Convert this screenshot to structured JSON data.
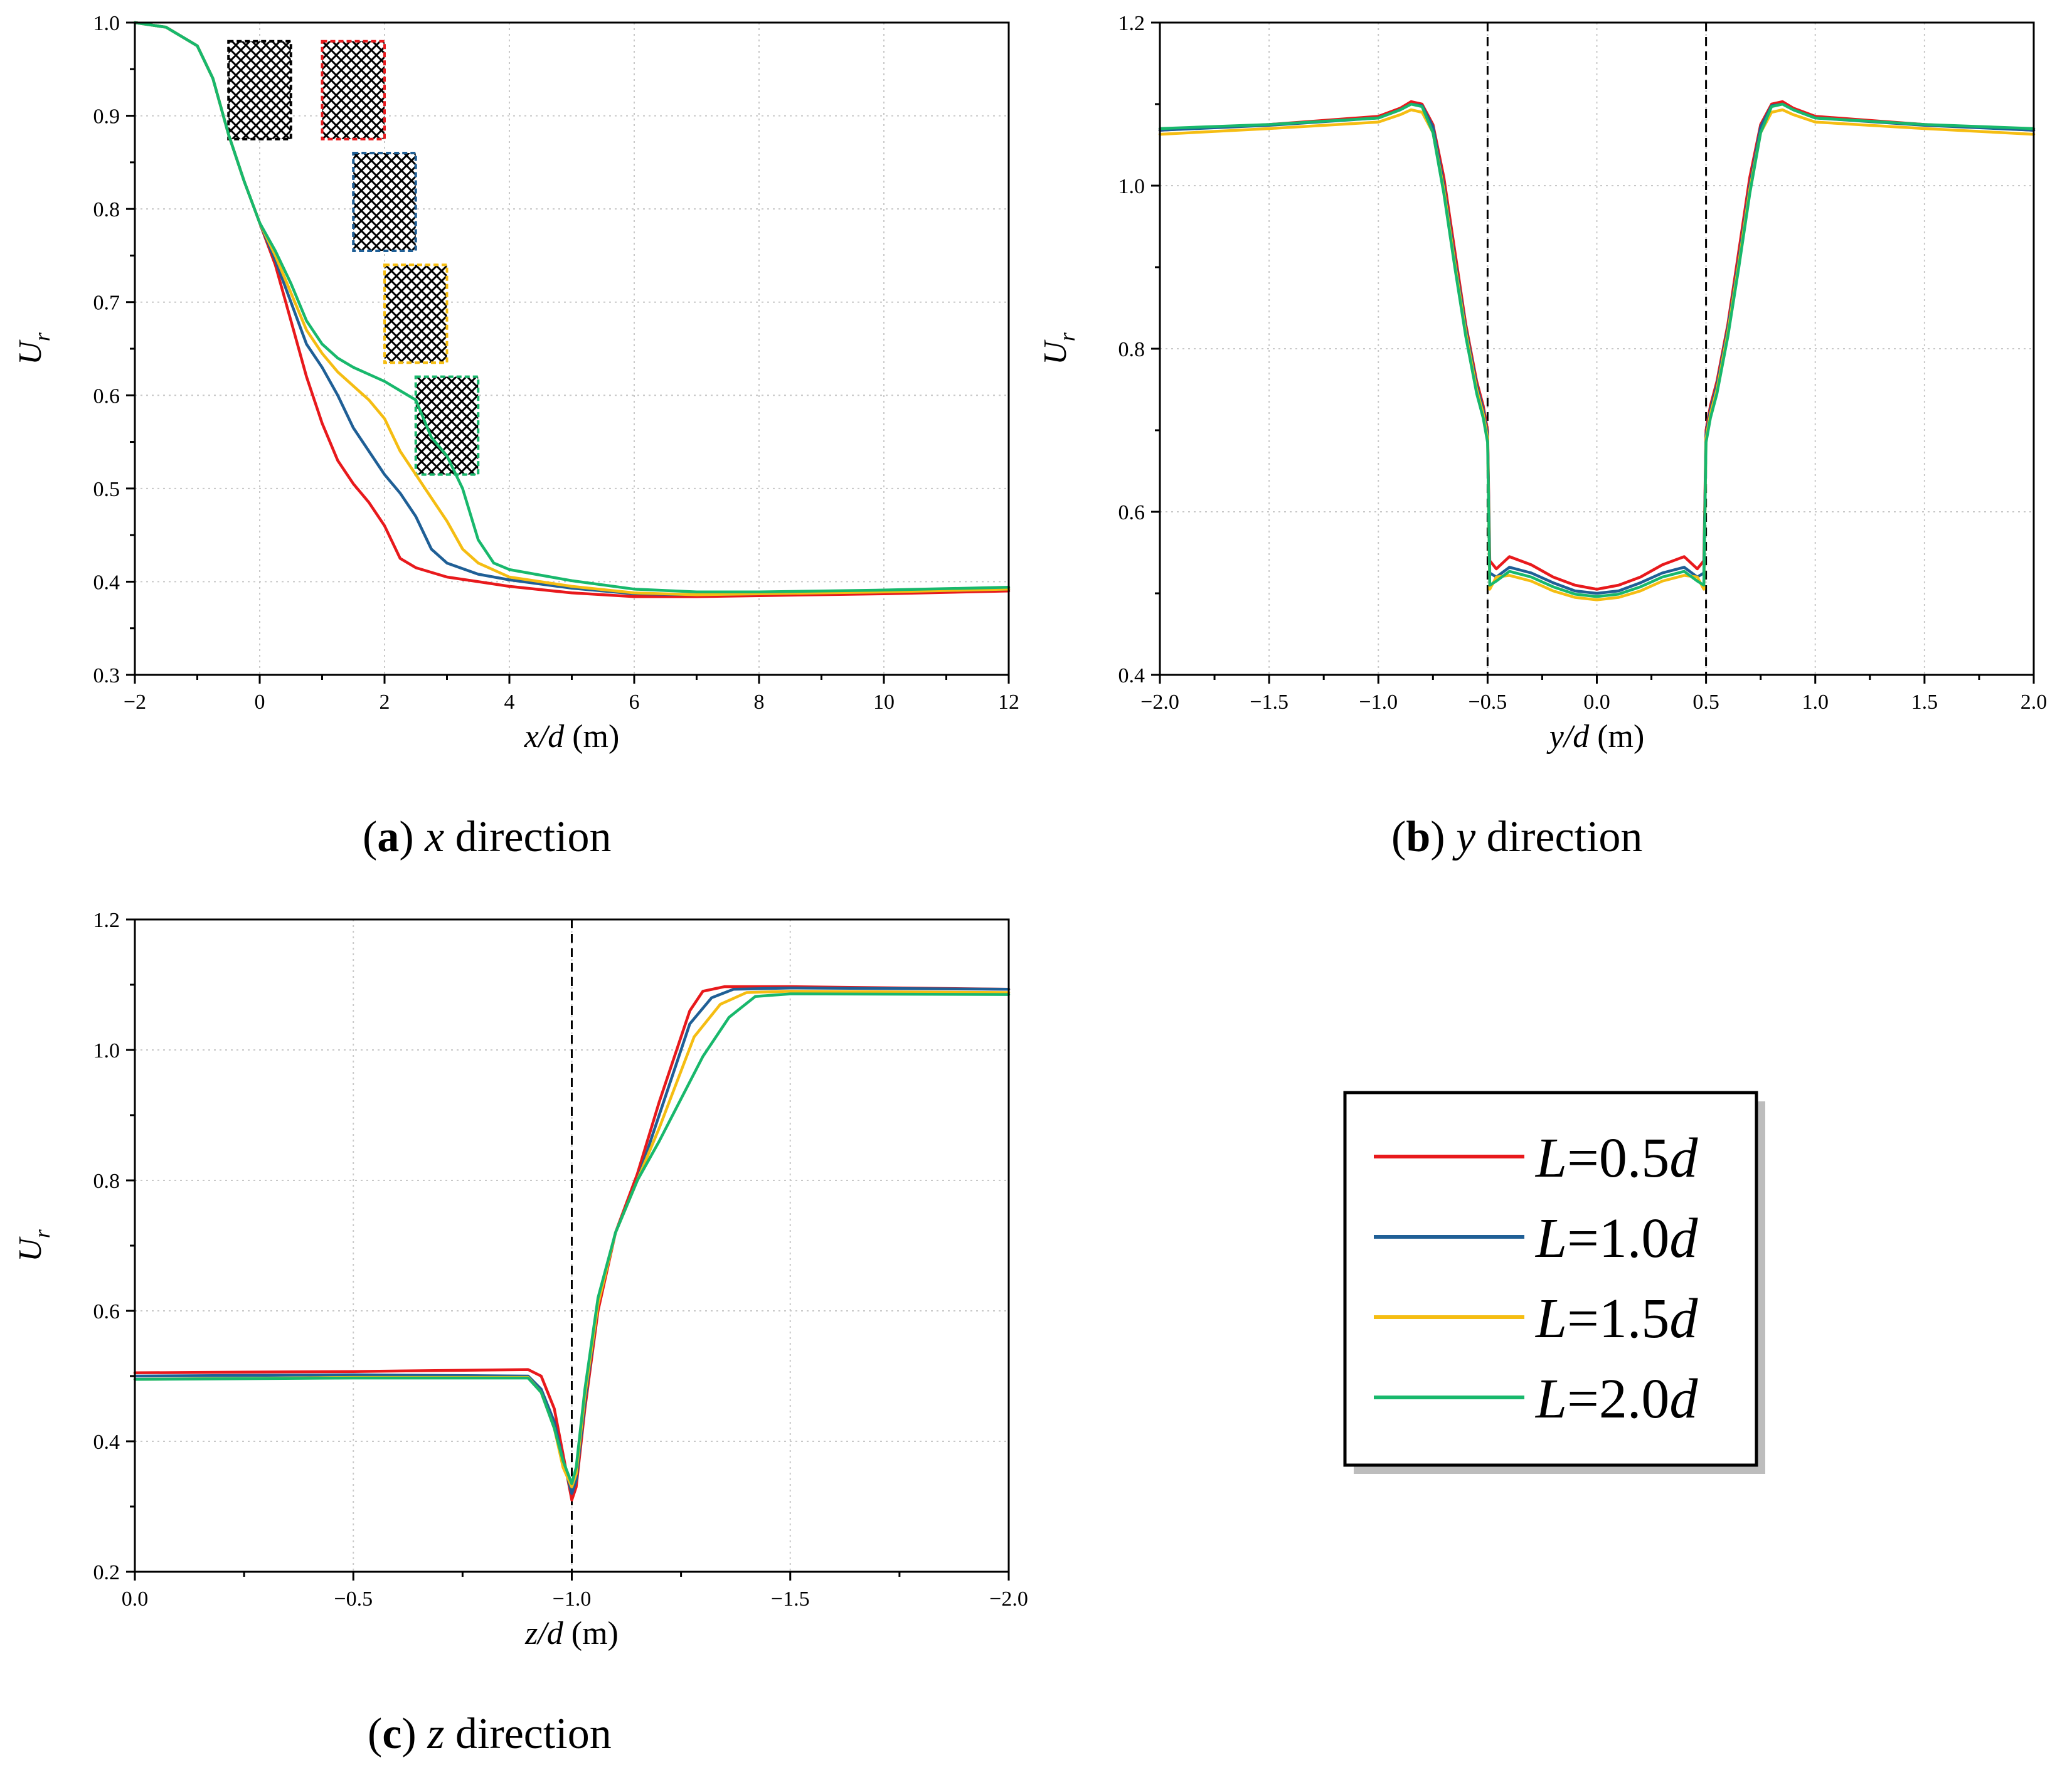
{
  "legend": {
    "entries": [
      {
        "key": "L05",
        "italic": "L",
        "rest": "=0.5",
        "suffix": "d",
        "label": "L=0.5d",
        "color": "#e8191c"
      },
      {
        "key": "L10",
        "italic": "L",
        "rest": "=1.0",
        "suffix": "d",
        "label": "L=1.0d",
        "color": "#1f5f96"
      },
      {
        "key": "L15",
        "italic": "L",
        "rest": "=1.5",
        "suffix": "d",
        "label": "L=1.5d",
        "color": "#f5bd12"
      },
      {
        "key": "L20",
        "italic": "L",
        "rest": "=2.0",
        "suffix": "d",
        "label": "L=2.0d",
        "color": "#18b86c"
      }
    ]
  },
  "chart_data": [
    {
      "id": "a",
      "type": "line",
      "caption": {
        "letter": "a",
        "var": "x",
        "text": " direction"
      },
      "xlabel": {
        "var": "x/d",
        "unit": " (m)"
      },
      "ylabel": {
        "main": "U",
        "sub": "r"
      },
      "xlim": [
        -2,
        12
      ],
      "ylim": [
        0.3,
        1.0
      ],
      "xticks": [
        -2,
        0,
        2,
        4,
        6,
        8,
        10,
        12
      ],
      "xticklabels": [
        "−2",
        "0",
        "2",
        "4",
        "6",
        "8",
        "10",
        "12"
      ],
      "yticks": [
        0.3,
        0.4,
        0.5,
        0.6,
        0.7,
        0.8,
        0.9,
        1.0
      ],
      "yticklabels": [
        "0.3",
        "0.4",
        "0.5",
        "0.6",
        "0.7",
        "0.8",
        "0.9",
        "1.0"
      ],
      "grid": true,
      "obstacles": [
        {
          "x0": -0.5,
          "x1": 0.5,
          "y0": 0.875,
          "y1": 0.98,
          "color": "#000000"
        },
        {
          "x0": 1.0,
          "x1": 2.0,
          "y0": 0.875,
          "y1": 0.98,
          "color": "#e8191c"
        },
        {
          "x0": 1.5,
          "x1": 2.5,
          "y0": 0.755,
          "y1": 0.86,
          "color": "#1f5f96"
        },
        {
          "x0": 2.0,
          "x1": 3.0,
          "y0": 0.635,
          "y1": 0.74,
          "color": "#f5bd12"
        },
        {
          "x0": 2.5,
          "x1": 3.5,
          "y0": 0.515,
          "y1": 0.62,
          "color": "#18b86c"
        }
      ],
      "series": [
        {
          "name": "L=0.5d",
          "x": [
            -2,
            -1.5,
            -1,
            -0.75,
            -0.5,
            -0.25,
            0,
            0.25,
            0.5,
            0.75,
            1,
            1.25,
            1.5,
            1.75,
            2,
            2.25,
            2.5,
            3,
            3.5,
            4,
            5,
            6,
            7,
            8,
            10,
            12
          ],
          "y": [
            1.0,
            0.995,
            0.975,
            0.94,
            0.88,
            0.83,
            0.785,
            0.74,
            0.68,
            0.62,
            0.57,
            0.53,
            0.505,
            0.485,
            0.46,
            0.425,
            0.415,
            0.405,
            0.4,
            0.395,
            0.388,
            0.384,
            0.384,
            0.385,
            0.387,
            0.39
          ]
        },
        {
          "name": "L=1.0d",
          "x": [
            -2,
            -1.5,
            -1,
            -0.75,
            -0.5,
            -0.25,
            0,
            0.25,
            0.5,
            0.75,
            1,
            1.25,
            1.5,
            1.75,
            2,
            2.25,
            2.5,
            2.75,
            3,
            3.5,
            4,
            5,
            6,
            7,
            8,
            10,
            12
          ],
          "y": [
            1.0,
            0.995,
            0.975,
            0.94,
            0.88,
            0.83,
            0.785,
            0.745,
            0.7,
            0.655,
            0.63,
            0.6,
            0.565,
            0.54,
            0.515,
            0.495,
            0.47,
            0.435,
            0.42,
            0.408,
            0.402,
            0.393,
            0.387,
            0.386,
            0.387,
            0.389,
            0.392
          ]
        },
        {
          "name": "L=1.5d",
          "x": [
            -2,
            -1.5,
            -1,
            -0.75,
            -0.5,
            -0.25,
            0,
            0.25,
            0.5,
            0.75,
            1,
            1.25,
            1.5,
            1.75,
            2,
            2.25,
            2.5,
            2.75,
            3,
            3.25,
            3.5,
            4,
            5,
            6,
            7,
            8,
            10,
            12
          ],
          "y": [
            1.0,
            0.995,
            0.975,
            0.94,
            0.88,
            0.83,
            0.785,
            0.75,
            0.71,
            0.67,
            0.645,
            0.625,
            0.61,
            0.595,
            0.575,
            0.54,
            0.515,
            0.49,
            0.465,
            0.435,
            0.42,
            0.405,
            0.395,
            0.388,
            0.386,
            0.387,
            0.389,
            0.392
          ]
        },
        {
          "name": "L=2.0d",
          "x": [
            -2,
            -1.5,
            -1,
            -0.75,
            -0.5,
            -0.25,
            0,
            0.25,
            0.5,
            0.75,
            1,
            1.25,
            1.5,
            2,
            2.25,
            2.5,
            2.75,
            3,
            3.25,
            3.5,
            3.75,
            4,
            5,
            6,
            7,
            8,
            10,
            12
          ],
          "y": [
            1.0,
            0.995,
            0.975,
            0.94,
            0.88,
            0.83,
            0.785,
            0.755,
            0.72,
            0.68,
            0.655,
            0.64,
            0.63,
            0.615,
            0.605,
            0.595,
            0.555,
            0.535,
            0.5,
            0.445,
            0.42,
            0.413,
            0.401,
            0.392,
            0.389,
            0.389,
            0.391,
            0.394
          ]
        }
      ]
    },
    {
      "id": "b",
      "type": "line",
      "caption": {
        "letter": "b",
        "var": "y",
        "text": " direction"
      },
      "xlabel": {
        "var": "y/d",
        "unit": " (m)"
      },
      "ylabel": {
        "main": "U",
        "sub": "r"
      },
      "xlim": [
        -2.0,
        2.0
      ],
      "ylim": [
        0.4,
        1.2
      ],
      "xticks": [
        -2.0,
        -1.5,
        -1.0,
        -0.5,
        0.0,
        0.5,
        1.0,
        1.5,
        2.0
      ],
      "xticklabels": [
        "−2.0",
        "−1.5",
        "−1.0",
        "−0.5",
        "0.0",
        "0.5",
        "1.0",
        "1.5",
        "2.0"
      ],
      "yticks": [
        0.4,
        0.6,
        0.8,
        1.0,
        1.2
      ],
      "yticklabels": [
        "0.4",
        "0.6",
        "0.8",
        "1.0",
        "1.2"
      ],
      "grid": true,
      "vlines": [
        -0.5,
        0.5
      ],
      "series": [
        {
          "name": "L=0.5d",
          "x": [
            -2,
            -1.5,
            -1.0,
            -0.9,
            -0.85,
            -0.8,
            -0.75,
            -0.7,
            -0.65,
            -0.6,
            -0.55,
            -0.52,
            -0.5,
            -0.49,
            -0.46,
            -0.4,
            -0.3,
            -0.2,
            -0.1,
            0,
            0.1,
            0.2,
            0.3,
            0.4,
            0.46,
            0.49,
            0.5,
            0.52,
            0.55,
            0.6,
            0.65,
            0.7,
            0.75,
            0.8,
            0.85,
            0.9,
            1.0,
            1.5,
            2.0
          ],
          "y": [
            1.068,
            1.075,
            1.085,
            1.095,
            1.103,
            1.1,
            1.075,
            1.01,
            0.92,
            0.83,
            0.76,
            0.73,
            0.7,
            0.54,
            0.53,
            0.545,
            0.535,
            0.52,
            0.51,
            0.505,
            0.51,
            0.52,
            0.535,
            0.545,
            0.53,
            0.54,
            0.7,
            0.73,
            0.76,
            0.83,
            0.92,
            1.01,
            1.075,
            1.1,
            1.103,
            1.095,
            1.085,
            1.075,
            1.068
          ]
        },
        {
          "name": "L=1.0d",
          "x": [
            -2,
            -1.5,
            -1.0,
            -0.9,
            -0.85,
            -0.8,
            -0.75,
            -0.7,
            -0.65,
            -0.6,
            -0.55,
            -0.52,
            -0.5,
            -0.49,
            -0.46,
            -0.4,
            -0.3,
            -0.2,
            -0.1,
            0,
            0.1,
            0.2,
            0.3,
            0.4,
            0.46,
            0.49,
            0.5,
            0.52,
            0.55,
            0.6,
            0.65,
            0.7,
            0.75,
            0.8,
            0.85,
            0.9,
            1.0,
            1.5,
            2.0
          ],
          "y": [
            1.068,
            1.074,
            1.083,
            1.093,
            1.1,
            1.098,
            1.072,
            1.0,
            0.91,
            0.825,
            0.755,
            0.725,
            0.695,
            0.525,
            0.52,
            0.532,
            0.525,
            0.513,
            0.503,
            0.5,
            0.503,
            0.513,
            0.525,
            0.532,
            0.52,
            0.525,
            0.695,
            0.725,
            0.755,
            0.825,
            0.91,
            1.0,
            1.072,
            1.098,
            1.1,
            1.093,
            1.083,
            1.074,
            1.068
          ]
        },
        {
          "name": "L=1.5d",
          "x": [
            -2,
            -1.5,
            -1.0,
            -0.9,
            -0.85,
            -0.8,
            -0.75,
            -0.7,
            -0.65,
            -0.6,
            -0.55,
            -0.52,
            -0.5,
            -0.49,
            -0.46,
            -0.4,
            -0.3,
            -0.2,
            -0.1,
            0,
            0.1,
            0.2,
            0.3,
            0.4,
            0.46,
            0.49,
            0.5,
            0.52,
            0.55,
            0.6,
            0.65,
            0.7,
            0.75,
            0.8,
            0.85,
            0.9,
            1.0,
            1.5,
            2.0
          ],
          "y": [
            1.063,
            1.07,
            1.078,
            1.087,
            1.093,
            1.09,
            1.065,
            0.995,
            0.905,
            0.82,
            0.75,
            0.72,
            0.69,
            0.505,
            0.52,
            0.522,
            0.515,
            0.503,
            0.495,
            0.492,
            0.495,
            0.503,
            0.515,
            0.522,
            0.52,
            0.505,
            0.69,
            0.72,
            0.75,
            0.82,
            0.905,
            0.995,
            1.065,
            1.09,
            1.093,
            1.087,
            1.078,
            1.07,
            1.063
          ]
        },
        {
          "name": "L=2.0d",
          "x": [
            -2,
            -1.5,
            -1.0,
            -0.9,
            -0.85,
            -0.8,
            -0.75,
            -0.7,
            -0.65,
            -0.6,
            -0.55,
            -0.52,
            -0.5,
            -0.49,
            -0.46,
            -0.4,
            -0.3,
            -0.2,
            -0.1,
            0,
            0.1,
            0.2,
            0.3,
            0.4,
            0.46,
            0.49,
            0.5,
            0.52,
            0.55,
            0.6,
            0.65,
            0.7,
            0.75,
            0.8,
            0.85,
            0.9,
            1.0,
            1.5,
            2.0
          ],
          "y": [
            1.07,
            1.075,
            1.083,
            1.093,
            1.1,
            1.097,
            1.065,
            0.99,
            0.9,
            0.815,
            0.745,
            0.715,
            0.685,
            0.51,
            0.515,
            0.527,
            0.52,
            0.508,
            0.499,
            0.496,
            0.499,
            0.508,
            0.52,
            0.527,
            0.515,
            0.51,
            0.685,
            0.715,
            0.745,
            0.815,
            0.9,
            0.99,
            1.065,
            1.097,
            1.1,
            1.093,
            1.083,
            1.075,
            1.07
          ]
        }
      ]
    },
    {
      "id": "c",
      "type": "line",
      "caption": {
        "letter": "c",
        "var": "z",
        "text": " direction"
      },
      "xlabel": {
        "var": "z/d",
        "unit": " (m)"
      },
      "ylabel": {
        "main": "U",
        "sub": "r"
      },
      "xlim": [
        0.0,
        -2.0
      ],
      "ylim": [
        0.2,
        1.2
      ],
      "xticks": [
        0.0,
        -0.5,
        -1.0,
        -1.5,
        -2.0
      ],
      "xticklabels": [
        "0.0",
        "−0.5",
        "−1.0",
        "−1.5",
        "−2.0"
      ],
      "yticks": [
        0.2,
        0.4,
        0.6,
        0.8,
        1.0,
        1.2
      ],
      "yticklabels": [
        "0.2",
        "0.4",
        "0.6",
        "0.8",
        "1.0",
        "1.2"
      ],
      "grid": true,
      "vlines": [
        -1.0
      ],
      "series": [
        {
          "name": "L=0.5d",
          "x": [
            0,
            -0.5,
            -0.9,
            -0.93,
            -0.96,
            -0.98,
            -1.0,
            -1.01,
            -1.03,
            -1.06,
            -1.1,
            -1.15,
            -1.2,
            -1.27,
            -1.3,
            -1.35,
            -1.5,
            -2.0
          ],
          "y": [
            0.505,
            0.507,
            0.51,
            0.5,
            0.45,
            0.38,
            0.31,
            0.33,
            0.45,
            0.6,
            0.72,
            0.81,
            0.92,
            1.06,
            1.09,
            1.097,
            1.097,
            1.093
          ]
        },
        {
          "name": "L=1.0d",
          "x": [
            0,
            -0.5,
            -0.9,
            -0.93,
            -0.96,
            -0.98,
            -1.0,
            -1.01,
            -1.03,
            -1.06,
            -1.1,
            -1.15,
            -1.2,
            -1.27,
            -1.32,
            -1.37,
            -1.5,
            -2.0
          ],
          "y": [
            0.5,
            0.502,
            0.5,
            0.48,
            0.43,
            0.37,
            0.32,
            0.34,
            0.46,
            0.61,
            0.72,
            0.8,
            0.9,
            1.04,
            1.08,
            1.093,
            1.095,
            1.093
          ]
        },
        {
          "name": "L=1.5d",
          "x": [
            0,
            -0.5,
            -0.9,
            -0.93,
            -0.96,
            -0.98,
            -1.0,
            -1.01,
            -1.03,
            -1.06,
            -1.1,
            -1.15,
            -1.2,
            -1.28,
            -1.34,
            -1.4,
            -1.5,
            -2.0
          ],
          "y": [
            0.495,
            0.498,
            0.498,
            0.475,
            0.42,
            0.36,
            0.33,
            0.35,
            0.47,
            0.61,
            0.72,
            0.8,
            0.88,
            1.02,
            1.07,
            1.088,
            1.09,
            1.088
          ]
        },
        {
          "name": "L=2.0d",
          "x": [
            0,
            -0.5,
            -0.9,
            -0.93,
            -0.96,
            -0.98,
            -1.0,
            -1.01,
            -1.03,
            -1.06,
            -1.1,
            -1.15,
            -1.2,
            -1.3,
            -1.36,
            -1.42,
            -1.5,
            -2.0
          ],
          "y": [
            0.495,
            0.497,
            0.497,
            0.475,
            0.42,
            0.37,
            0.335,
            0.36,
            0.48,
            0.62,
            0.72,
            0.8,
            0.86,
            0.99,
            1.05,
            1.082,
            1.086,
            1.085
          ]
        }
      ]
    }
  ]
}
